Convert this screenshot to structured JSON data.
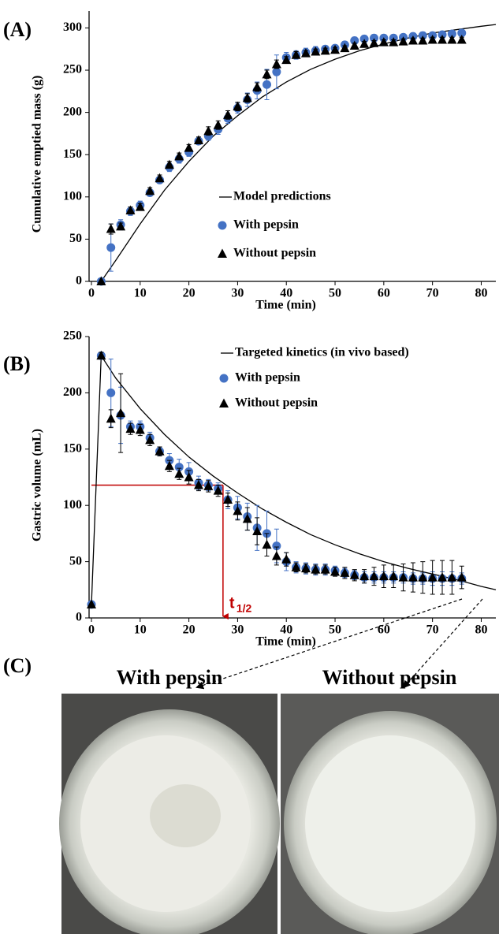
{
  "chart_data": [
    {
      "type": "scatter",
      "panel_label": "(A)",
      "x_label": "Time (min)",
      "y_label": "Cumulative emptied mass (g)",
      "xlim": [
        0,
        83
      ],
      "ylim": [
        0,
        320
      ],
      "xticks": [
        0,
        10,
        20,
        30,
        40,
        50,
        60,
        70,
        80
      ],
      "yticks": [
        0,
        50,
        100,
        150,
        200,
        250,
        300
      ],
      "legend": "right",
      "series": [
        {
          "name": "Model predictions",
          "style": "line",
          "color": "#000000",
          "x": [
            2,
            5,
            10,
            15,
            20,
            25,
            30,
            35,
            40,
            45,
            50,
            55,
            60,
            65,
            70,
            75,
            80,
            83
          ],
          "values": [
            0,
            25,
            68,
            108,
            142,
            172,
            196,
            218,
            236,
            251,
            263,
            273,
            281,
            288,
            294,
            298,
            302,
            304
          ]
        },
        {
          "name": "With pepsin",
          "style": "circle",
          "color": "#4472c4",
          "x": [
            2,
            4,
            6,
            8,
            10,
            12,
            14,
            16,
            18,
            20,
            22,
            24,
            26,
            28,
            30,
            32,
            34,
            36,
            38,
            40,
            42,
            44,
            46,
            48,
            50,
            52,
            54,
            56,
            58,
            60,
            62,
            64,
            66,
            68,
            70,
            72,
            74,
            76
          ],
          "values": [
            0,
            40,
            67,
            83,
            90,
            105,
            120,
            135,
            145,
            153,
            166,
            172,
            180,
            193,
            205,
            215,
            226,
            233,
            248,
            265,
            268,
            271,
            273,
            275,
            276,
            280,
            285,
            287,
            288,
            288,
            288,
            289,
            290,
            291,
            291,
            292,
            293,
            294
          ],
          "errors": [
            0,
            28,
            6,
            5,
            5,
            4,
            4,
            5,
            5,
            5,
            4,
            5,
            6,
            6,
            6,
            8,
            10,
            18,
            20,
            6,
            5,
            5,
            5,
            4,
            4,
            4,
            4,
            4,
            4,
            4,
            4,
            4,
            4,
            4,
            4,
            4,
            4,
            4
          ]
        },
        {
          "name": "Without pepsin",
          "style": "triangle",
          "color": "#000000",
          "x": [
            2,
            4,
            6,
            8,
            10,
            12,
            14,
            16,
            18,
            20,
            22,
            24,
            26,
            28,
            30,
            32,
            34,
            36,
            38,
            40,
            42,
            44,
            46,
            48,
            50,
            52,
            54,
            56,
            58,
            60,
            62,
            64,
            66,
            68,
            70,
            72,
            74,
            76
          ],
          "values": [
            0,
            62,
            65,
            84,
            88,
            107,
            122,
            138,
            148,
            158,
            167,
            178,
            185,
            197,
            207,
            217,
            230,
            245,
            257,
            262,
            268,
            270,
            272,
            273,
            274,
            276,
            279,
            281,
            282,
            283,
            283,
            284,
            285,
            285,
            286,
            286,
            286,
            286
          ],
          "errors": [
            0,
            6,
            4,
            4,
            4,
            4,
            4,
            4,
            4,
            4,
            4,
            5,
            5,
            5,
            5,
            5,
            5,
            5,
            5,
            4,
            4,
            3,
            3,
            3,
            3,
            3,
            3,
            3,
            3,
            3,
            3,
            3,
            3,
            3,
            3,
            3,
            3,
            3
          ]
        }
      ]
    },
    {
      "type": "scatter",
      "panel_label": "(B)",
      "x_label": "Time (min)",
      "y_label": "Gastric volume (mL)",
      "xlim": [
        0,
        83
      ],
      "ylim": [
        0,
        250
      ],
      "xticks": [
        0,
        10,
        20,
        30,
        40,
        50,
        60,
        70,
        80
      ],
      "yticks": [
        0,
        50,
        100,
        150,
        200,
        250
      ],
      "legend": "upper right",
      "annotation": {
        "text": "t",
        "subscript": "1/2",
        "x": 27,
        "y": 118,
        "color": "#c00000"
      },
      "series": [
        {
          "name": "Targeted kinetics (in vivo based)",
          "style": "line",
          "color": "#000000",
          "x": [
            0,
            2,
            5,
            10,
            15,
            20,
            25,
            30,
            35,
            40,
            45,
            50,
            55,
            60,
            65,
            70,
            75,
            80,
            83
          ],
          "values": [
            12,
            233,
            213,
            186,
            163,
            143,
            126,
            111,
            97,
            85,
            74,
            65,
            57,
            50,
            44,
            39,
            34,
            28,
            25
          ]
        },
        {
          "name": "With pepsin",
          "style": "circle",
          "color": "#4472c4",
          "x": [
            0,
            2,
            4,
            6,
            8,
            10,
            12,
            14,
            16,
            18,
            20,
            22,
            24,
            26,
            28,
            30,
            32,
            34,
            36,
            38,
            40,
            42,
            44,
            46,
            48,
            50,
            52,
            54,
            56,
            58,
            60,
            62,
            64,
            66,
            68,
            70,
            72,
            74,
            76
          ],
          "values": [
            12,
            233,
            200,
            180,
            170,
            170,
            160,
            148,
            140,
            134,
            130,
            120,
            118,
            115,
            105,
            98,
            90,
            80,
            75,
            64,
            50,
            45,
            44,
            43,
            43,
            42,
            40,
            38,
            36,
            36,
            36,
            36,
            36,
            35,
            35,
            35,
            35,
            35,
            35
          ],
          "errors": [
            0,
            3,
            30,
            25,
            5,
            5,
            5,
            4,
            6,
            7,
            8,
            6,
            5,
            5,
            8,
            10,
            12,
            20,
            20,
            15,
            8,
            5,
            5,
            5,
            5,
            4,
            4,
            4,
            5,
            5,
            5,
            5,
            5,
            5,
            5,
            6,
            6,
            6,
            5
          ]
        },
        {
          "name": "Without pepsin",
          "style": "triangle",
          "color": "#000000",
          "x": [
            0,
            2,
            4,
            6,
            8,
            10,
            12,
            14,
            16,
            18,
            20,
            22,
            24,
            26,
            28,
            30,
            32,
            34,
            36,
            38,
            40,
            42,
            44,
            46,
            48,
            50,
            52,
            54,
            56,
            58,
            60,
            62,
            64,
            66,
            68,
            70,
            72,
            74,
            76
          ],
          "values": [
            12,
            233,
            177,
            182,
            168,
            167,
            158,
            148,
            135,
            128,
            125,
            118,
            117,
            113,
            105,
            95,
            88,
            77,
            65,
            55,
            52,
            45,
            44,
            43,
            43,
            41,
            40,
            38,
            37,
            37,
            37,
            37,
            36,
            36,
            36,
            36,
            36,
            36,
            36
          ],
          "errors": [
            0,
            3,
            8,
            35,
            5,
            5,
            5,
            4,
            5,
            5,
            6,
            5,
            5,
            5,
            6,
            8,
            10,
            12,
            10,
            8,
            6,
            4,
            4,
            4,
            4,
            4,
            5,
            5,
            6,
            8,
            10,
            10,
            12,
            13,
            14,
            15,
            15,
            15,
            10
          ]
        }
      ]
    }
  ],
  "panel_c": {
    "label": "(C)",
    "photos": [
      {
        "caption": "With pepsin"
      },
      {
        "caption": "Without pepsin"
      }
    ]
  }
}
